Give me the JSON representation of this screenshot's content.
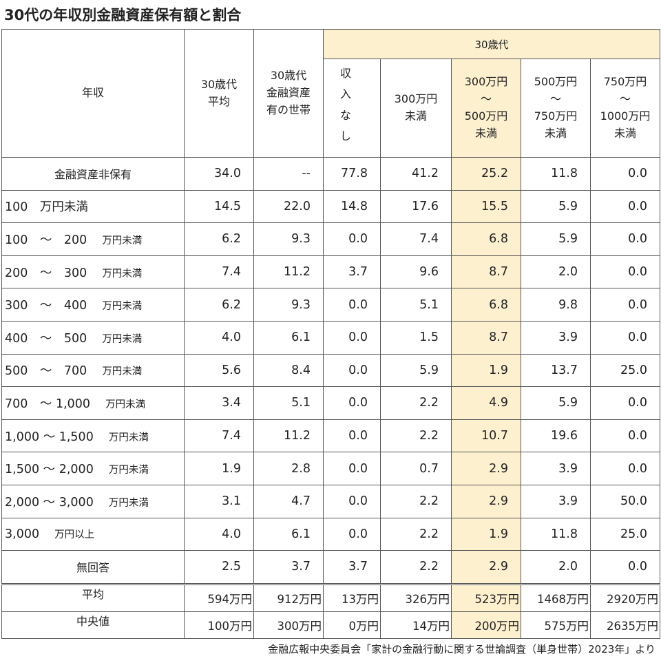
{
  "title": "30代の年収別金融資産保有額と割合",
  "header": {
    "row_label": "年収",
    "avg_label_line1": "30歳代",
    "avg_label_line2": "平均",
    "held_label_line1": "30歳代",
    "held_label_line2": "金融資産",
    "held_label_line3": "有の世帯",
    "group_label": "30歳代",
    "cols": [
      {
        "lines": [
          "収",
          "入",
          "な",
          "し"
        ]
      },
      {
        "lines": [
          "300万円",
          "未満"
        ]
      },
      {
        "lines": [
          "300万円",
          "〜",
          "500万円",
          "未満"
        ]
      },
      {
        "lines": [
          "500万円",
          "〜",
          "750万円",
          "未満"
        ]
      },
      {
        "lines": [
          "750万円",
          "〜",
          "1000万円",
          "未満"
        ]
      }
    ]
  },
  "rows": [
    {
      "label_main": "金融資産非保有",
      "label_unit": "",
      "centered": true,
      "values": [
        "34.0",
        "--",
        "77.8",
        "41.2",
        "25.2",
        "11.8",
        "0.0"
      ]
    },
    {
      "label_main": "100　万円未満",
      "label_unit": "",
      "centered": false,
      "values": [
        "14.5",
        "22.0",
        "14.8",
        "17.6",
        "15.5",
        "5.9",
        "0.0"
      ]
    },
    {
      "label_main": "100　～　200",
      "label_unit": "万円未満",
      "centered": false,
      "values": [
        "6.2",
        "9.3",
        "0.0",
        "7.4",
        "6.8",
        "5.9",
        "0.0"
      ]
    },
    {
      "label_main": "200　～　300",
      "label_unit": "万円未満",
      "centered": false,
      "values": [
        "7.4",
        "11.2",
        "3.7",
        "9.6",
        "8.7",
        "2.0",
        "0.0"
      ]
    },
    {
      "label_main": "300　～　400",
      "label_unit": "万円未満",
      "centered": false,
      "values": [
        "6.2",
        "9.3",
        "0.0",
        "5.1",
        "6.8",
        "9.8",
        "0.0"
      ]
    },
    {
      "label_main": "400　～　500",
      "label_unit": "万円未満",
      "centered": false,
      "values": [
        "4.0",
        "6.1",
        "0.0",
        "1.5",
        "8.7",
        "3.9",
        "0.0"
      ]
    },
    {
      "label_main": "500　～　700",
      "label_unit": "万円未満",
      "centered": false,
      "values": [
        "5.6",
        "8.4",
        "0.0",
        "5.9",
        "1.9",
        "13.7",
        "25.0"
      ]
    },
    {
      "label_main": "700　～ 1,000",
      "label_unit": "万円未満",
      "centered": false,
      "values": [
        "3.4",
        "5.1",
        "0.0",
        "2.2",
        "4.9",
        "5.9",
        "0.0"
      ]
    },
    {
      "label_main": "1,000 ～ 1,500",
      "label_unit": "万円未満",
      "centered": false,
      "values": [
        "7.4",
        "11.2",
        "0.0",
        "2.2",
        "10.7",
        "19.6",
        "0.0"
      ]
    },
    {
      "label_main": "1,500 ～ 2,000",
      "label_unit": "万円未満",
      "centered": false,
      "values": [
        "1.9",
        "2.8",
        "0.0",
        "0.7",
        "2.9",
        "3.9",
        "0.0"
      ]
    },
    {
      "label_main": "2,000 ～ 3,000",
      "label_unit": "万円未満",
      "centered": false,
      "values": [
        "3.1",
        "4.7",
        "0.0",
        "2.2",
        "2.9",
        "3.9",
        "50.0"
      ]
    },
    {
      "label_main": "3,000",
      "label_unit": "万円以上",
      "centered": false,
      "values": [
        "4.0",
        "6.1",
        "0.0",
        "2.2",
        "1.9",
        "11.8",
        "25.0"
      ]
    },
    {
      "label_main": "無回答",
      "label_unit": "",
      "centered": true,
      "values": [
        "2.5",
        "3.7",
        "3.7",
        "2.2",
        "2.9",
        "2.0",
        "0.0"
      ]
    }
  ],
  "summary": [
    {
      "label": "平均",
      "values": [
        "594万円",
        "912万円",
        "13万円",
        "326万円",
        "523万円",
        "1468万円",
        "2920万円"
      ]
    },
    {
      "label": "中央値",
      "values": [
        "100万円",
        "300万円",
        "0万円",
        "14万円",
        "200万円",
        "575万円",
        "2635万円"
      ]
    }
  ],
  "highlight_color": "#fcf0cf",
  "footer": "金融広報中央委員会「家計の金融行動に関する世論調査（単身世帯）2023年」より"
}
